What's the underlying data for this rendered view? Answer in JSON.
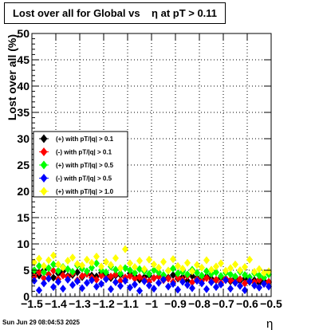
{
  "chart_data": {
    "type": "scatter",
    "title": "Lost over all for Global vs    η at pT > 0.11",
    "xlabel": "η",
    "ylabel": "Lost over all (%)",
    "xlim": [
      -1.5,
      -0.5
    ],
    "ylim": [
      0,
      50
    ],
    "x_ticks": [
      -1.5,
      -1.4,
      -1.3,
      -1.2,
      -1.1,
      -1.0,
      -0.9,
      -0.8,
      -0.7,
      -0.6,
      -0.5
    ],
    "x_tick_labels": [
      "−1.5",
      "−1.4",
      "−1.3",
      "−1.2",
      "−1.1",
      "−1",
      "−0.9",
      "−0.8",
      "−0.7",
      "−0.6",
      "−0.5"
    ],
    "y_ticks": [
      0,
      5,
      10,
      15,
      20,
      25,
      30,
      35,
      40,
      45,
      50
    ],
    "y_tick_labels": [
      "0",
      "5",
      "10",
      "15",
      "20",
      "25",
      "30",
      "35",
      "40",
      "45",
      "50"
    ],
    "grid": true,
    "legend_position": "middle-left",
    "series": [
      {
        "name": "(+) with pT/|q| > 0.1",
        "color": "#000000",
        "x": [
          -1.49,
          -1.47,
          -1.45,
          -1.43,
          -1.41,
          -1.39,
          -1.37,
          -1.35,
          -1.33,
          -1.31,
          -1.29,
          -1.27,
          -1.25,
          -1.23,
          -1.21,
          -1.19,
          -1.17,
          -1.15,
          -1.13,
          -1.11,
          -1.09,
          -1.07,
          -1.05,
          -1.03,
          -1.01,
          -0.99,
          -0.97,
          -0.95,
          -0.93,
          -0.91,
          -0.89,
          -0.87,
          -0.85,
          -0.83,
          -0.81,
          -0.79,
          -0.77,
          -0.75,
          -0.73,
          -0.71,
          -0.69,
          -0.67,
          -0.65,
          -0.63,
          -0.61,
          -0.59,
          -0.57,
          -0.55,
          -0.53,
          -0.51
        ],
        "y": [
          4.5,
          4.0,
          5.0,
          4.2,
          3.6,
          4.4,
          4.8,
          3.9,
          4.1,
          4.6,
          3.7,
          4.3,
          4.0,
          3.8,
          4.5,
          4.2,
          3.5,
          4.0,
          4.1,
          3.6,
          4.4,
          3.9,
          3.2,
          3.7,
          4.0,
          3.5,
          3.8,
          3.3,
          3.6,
          4.1,
          3.4,
          3.7,
          3.0,
          3.9,
          3.5,
          3.2,
          3.8,
          3.4,
          3.1,
          3.6,
          3.3,
          2.9,
          3.5,
          3.0,
          3.4,
          2.8,
          3.1,
          2.6,
          3.0,
          2.7
        ]
      },
      {
        "name": "(-) with pT/|q| > 0.1",
        "color": "#ff0000",
        "x": [
          -1.49,
          -1.47,
          -1.45,
          -1.43,
          -1.41,
          -1.39,
          -1.37,
          -1.35,
          -1.33,
          -1.31,
          -1.29,
          -1.27,
          -1.25,
          -1.23,
          -1.21,
          -1.19,
          -1.17,
          -1.15,
          -1.13,
          -1.11,
          -1.09,
          -1.07,
          -1.05,
          -1.03,
          -1.01,
          -0.99,
          -0.97,
          -0.95,
          -0.93,
          -0.91,
          -0.89,
          -0.87,
          -0.85,
          -0.83,
          -0.81,
          -0.79,
          -0.77,
          -0.75,
          -0.73,
          -0.71,
          -0.69,
          -0.67,
          -0.65,
          -0.63,
          -0.61,
          -0.59,
          -0.57,
          -0.55,
          -0.53,
          -0.51
        ],
        "y": [
          3.8,
          4.6,
          3.5,
          4.2,
          4.9,
          3.3,
          4.0,
          3.7,
          4.4,
          3.1,
          3.9,
          4.3,
          3.6,
          3.2,
          4.0,
          3.5,
          3.8,
          4.2,
          3.0,
          3.6,
          3.9,
          3.4,
          3.7,
          3.2,
          2.9,
          3.5,
          3.8,
          3.1,
          3.4,
          2.8,
          3.6,
          3.2,
          3.9,
          2.7,
          3.3,
          3.0,
          3.5,
          2.9,
          3.2,
          2.6,
          3.4,
          3.1,
          2.8,
          3.3,
          2.5,
          3.0,
          2.7,
          3.2,
          2.4,
          2.8
        ]
      },
      {
        "name": "(+) with pT/|q| > 0.5",
        "color": "#00ff00",
        "x": [
          -1.49,
          -1.47,
          -1.45,
          -1.43,
          -1.41,
          -1.39,
          -1.37,
          -1.35,
          -1.33,
          -1.31,
          -1.29,
          -1.27,
          -1.25,
          -1.23,
          -1.21,
          -1.19,
          -1.17,
          -1.15,
          -1.13,
          -1.11,
          -1.09,
          -1.07,
          -1.05,
          -1.03,
          -1.01,
          -0.99,
          -0.97,
          -0.95,
          -0.93,
          -0.91,
          -0.89,
          -0.87,
          -0.85,
          -0.83,
          -0.81,
          -0.79,
          -0.77,
          -0.75,
          -0.73,
          -0.71,
          -0.69,
          -0.67,
          -0.65,
          -0.63,
          -0.61,
          -0.59,
          -0.57,
          -0.55,
          -0.53,
          -0.51
        ],
        "y": [
          5.0,
          5.8,
          4.6,
          5.4,
          6.1,
          4.9,
          5.6,
          5.2,
          4.7,
          5.9,
          5.3,
          4.8,
          5.5,
          6.3,
          5.0,
          4.6,
          5.7,
          5.1,
          4.4,
          5.4,
          5.0,
          4.5,
          5.2,
          4.8,
          4.3,
          5.0,
          4.6,
          4.1,
          4.9,
          5.3,
          4.4,
          4.7,
          4.2,
          5.1,
          4.5,
          4.0,
          4.8,
          4.3,
          4.6,
          3.9,
          4.5,
          4.2,
          3.8,
          4.7,
          4.1,
          3.7,
          4.4,
          4.0,
          3.6,
          4.2
        ]
      },
      {
        "name": "(-) with pT/|q| > 0.5",
        "color": "#0000ff",
        "x": [
          -1.49,
          -1.47,
          -1.45,
          -1.43,
          -1.41,
          -1.39,
          -1.37,
          -1.35,
          -1.33,
          -1.31,
          -1.29,
          -1.27,
          -1.25,
          -1.23,
          -1.21,
          -1.19,
          -1.17,
          -1.15,
          -1.13,
          -1.11,
          -1.09,
          -1.07,
          -1.05,
          -1.03,
          -1.01,
          -0.99,
          -0.97,
          -0.95,
          -0.93,
          -0.91,
          -0.89,
          -0.87,
          -0.85,
          -0.83,
          -0.81,
          -0.79,
          -0.77,
          -0.75,
          -0.73,
          -0.71,
          -0.69,
          -0.67,
          -0.65,
          -0.63,
          -0.61,
          -0.59,
          -0.57,
          -0.55,
          -0.53,
          -0.51
        ],
        "y": [
          3.0,
          1.2,
          2.5,
          3.4,
          1.8,
          2.8,
          1.5,
          3.2,
          2.2,
          2.9,
          1.6,
          2.6,
          3.1,
          1.9,
          2.4,
          3.3,
          1.4,
          2.7,
          2.0,
          3.0,
          1.7,
          2.3,
          1.1,
          2.9,
          2.1,
          1.5,
          2.6,
          3.2,
          1.9,
          2.4,
          1.3,
          2.8,
          2.2,
          1.6,
          3.0,
          2.5,
          1.4,
          2.7,
          1.8,
          2.3,
          3.1,
          1.5,
          2.6,
          2.0,
          1.2,
          2.9,
          2.1,
          1.7,
          2.4,
          1.9
        ]
      },
      {
        "name": "(+) with pT/|q| > 1.0",
        "color": "#ffff00",
        "x": [
          -1.49,
          -1.47,
          -1.45,
          -1.43,
          -1.41,
          -1.39,
          -1.37,
          -1.35,
          -1.33,
          -1.31,
          -1.29,
          -1.27,
          -1.25,
          -1.23,
          -1.21,
          -1.19,
          -1.17,
          -1.15,
          -1.13,
          -1.11,
          -1.09,
          -1.07,
          -1.05,
          -1.03,
          -1.01,
          -0.99,
          -0.97,
          -0.95,
          -0.93,
          -0.91,
          -0.89,
          -0.87,
          -0.85,
          -0.83,
          -0.81,
          -0.79,
          -0.77,
          -0.75,
          -0.73,
          -0.71,
          -0.69,
          -0.67,
          -0.65,
          -0.63,
          -0.61,
          -0.59,
          -0.57,
          -0.55,
          -0.53,
          -0.51
        ],
        "y": [
          6.5,
          7.2,
          5.8,
          6.9,
          7.8,
          6.1,
          5.5,
          6.8,
          7.4,
          6.2,
          5.9,
          7.0,
          6.4,
          7.6,
          5.7,
          6.6,
          6.0,
          7.3,
          5.4,
          9.0,
          6.3,
          5.6,
          6.8,
          5.2,
          7.0,
          6.1,
          5.5,
          6.6,
          4.9,
          7.1,
          5.8,
          5.3,
          6.4,
          4.8,
          6.0,
          5.5,
          6.9,
          5.1,
          5.7,
          6.3,
          4.9,
          5.4,
          6.1,
          5.0,
          5.6,
          7.0,
          4.7,
          5.2,
          4.5,
          4.8
        ]
      }
    ]
  },
  "footer": {
    "date": "Sun Jun 29 08:04:53 2025"
  }
}
